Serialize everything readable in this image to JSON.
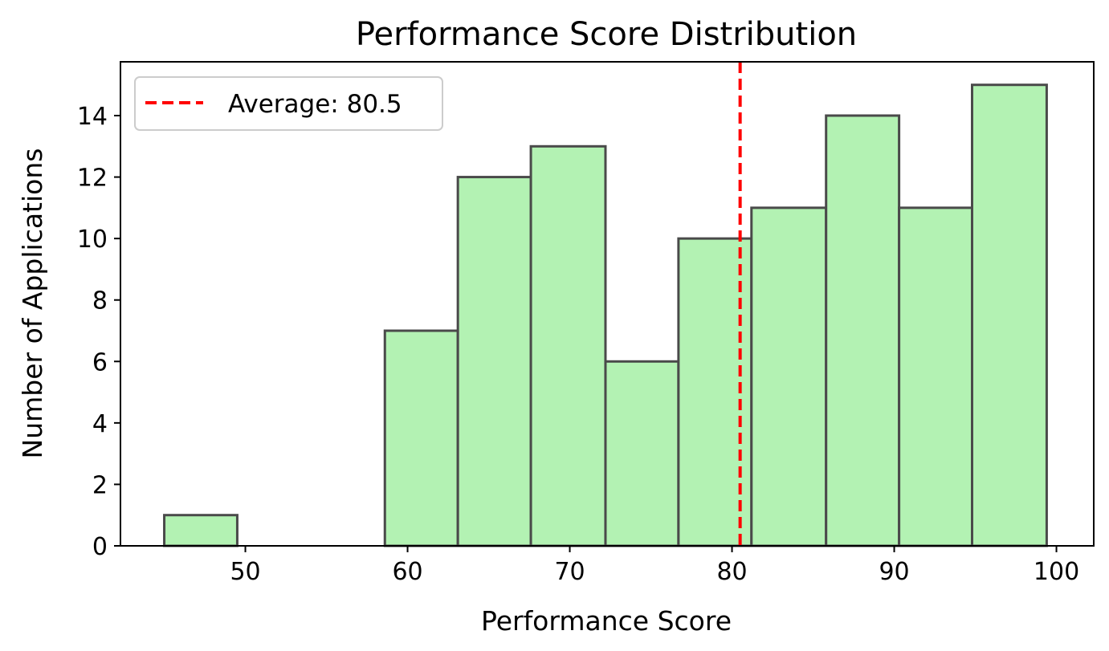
{
  "chart_data": {
    "type": "bar",
    "title": "Performance Score Distribution",
    "xlabel": "Performance Score",
    "ylabel": "Number of Applications",
    "xlim": [
      42.3,
      102.3
    ],
    "ylim": [
      0,
      15.75
    ],
    "x_ticks": [
      50,
      60,
      70,
      80,
      90,
      100
    ],
    "y_ticks": [
      0,
      2,
      4,
      6,
      8,
      10,
      12,
      14
    ],
    "bins": [
      {
        "start": 45.0,
        "end": 49.5,
        "count": 1
      },
      {
        "start": 49.5,
        "end": 54.0,
        "count": 0
      },
      {
        "start": 54.0,
        "end": 58.6,
        "count": 0
      },
      {
        "start": 58.6,
        "end": 63.1,
        "count": 7
      },
      {
        "start": 63.1,
        "end": 67.6,
        "count": 12
      },
      {
        "start": 67.6,
        "end": 72.2,
        "count": 13
      },
      {
        "start": 72.2,
        "end": 76.7,
        "count": 6
      },
      {
        "start": 76.7,
        "end": 81.2,
        "count": 10
      },
      {
        "start": 81.2,
        "end": 85.8,
        "count": 11
      },
      {
        "start": 85.8,
        "end": 90.3,
        "count": 14
      },
      {
        "start": 90.3,
        "end": 94.8,
        "count": 11
      },
      {
        "start": 94.8,
        "end": 99.4,
        "count": 15
      }
    ],
    "average": {
      "value": 80.5,
      "label": "Average: 80.5",
      "color": "#ff0000",
      "style": "dashed"
    },
    "bar_fill": "#b3f2b3",
    "bar_edge": "#4a4a4a",
    "grid": false,
    "legend": {
      "placement": "top-left",
      "entries": [
        "Average: 80.5"
      ]
    }
  }
}
